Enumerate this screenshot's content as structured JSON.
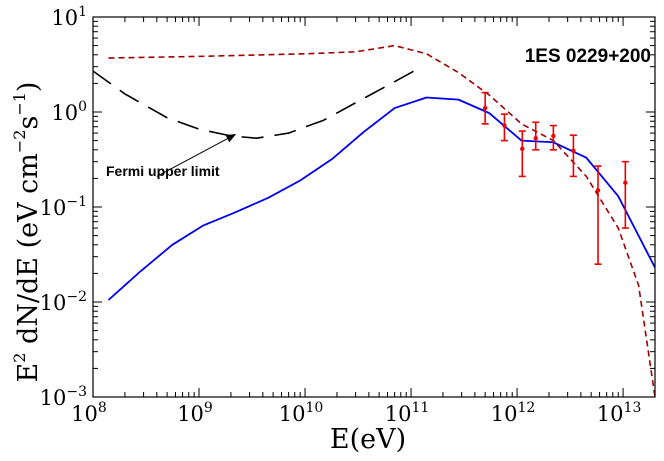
{
  "chart_data": {
    "type": "line",
    "title": "",
    "xscale": "log",
    "yscale": "log",
    "xlim": [
      100000000.0,
      20000000000000.0
    ],
    "ylim": [
      0.001,
      10
    ],
    "grid": false,
    "xlabel": "E(eV)",
    "ylabel": {
      "part1": "E",
      "sup1": "2",
      "part2": " dN/dE (eV cm",
      "sup2": "−2",
      "part3": "s",
      "sup3": "−1",
      "part4": ")"
    },
    "x_ticks": [
      {
        "base": "10",
        "exp": "8",
        "value": 100000000.0
      },
      {
        "base": "10",
        "exp": "9",
        "value": 1000000000.0
      },
      {
        "base": "10",
        "exp": "10",
        "value": 10000000000.0
      },
      {
        "base": "10",
        "exp": "11",
        "value": 100000000000.0
      },
      {
        "base": "10",
        "exp": "12",
        "value": 1000000000000.0
      },
      {
        "base": "10",
        "exp": "13",
        "value": 10000000000000.0
      }
    ],
    "y_ticks": [
      {
        "base": "10",
        "exp": "−3",
        "value": 0.001
      },
      {
        "base": "10",
        "exp": "−2",
        "value": 0.01
      },
      {
        "base": "10",
        "exp": "−1",
        "value": 0.1
      },
      {
        "base": "10",
        "exp": "0",
        "value": 1
      },
      {
        "base": "10",
        "exp": "1",
        "value": 10
      }
    ],
    "series": [
      {
        "key": "model_solid",
        "color": "#0000ee",
        "style": "solid",
        "points": [
          [
            140000000.0,
            0.0105
          ],
          [
            280000000.0,
            0.021
          ],
          [
            560000000.0,
            0.04
          ],
          [
            1100000000.0,
            0.064
          ],
          [
            2200000000.0,
            0.088
          ],
          [
            4500000000.0,
            0.125
          ],
          [
            9000000000.0,
            0.19
          ],
          [
            18000000000.0,
            0.32
          ],
          [
            36000000000.0,
            0.62
          ],
          [
            70000000000.0,
            1.1
          ],
          [
            140000000000.0,
            1.42
          ],
          [
            280000000000.0,
            1.35
          ],
          [
            550000000000.0,
            0.97
          ],
          [
            1100000000000.0,
            0.5
          ],
          [
            2200000000000.0,
            0.48
          ],
          [
            4500000000000.0,
            0.33
          ],
          [
            9000000000000.0,
            0.13
          ],
          [
            20000000000000.0,
            0.023
          ]
        ]
      },
      {
        "key": "model_dashed_red",
        "color": "#a00000",
        "style": "short-dash",
        "points": [
          [
            140000000.0,
            3.7
          ],
          [
            1000000000.0,
            3.85
          ],
          [
            10000000000.0,
            4.1
          ],
          [
            30000000000.0,
            4.3
          ],
          [
            70000000000.0,
            5.0
          ],
          [
            140000000000.0,
            4.1
          ],
          [
            280000000000.0,
            2.6
          ],
          [
            550000000000.0,
            1.5
          ],
          [
            1100000000000.0,
            0.75
          ],
          [
            2200000000000.0,
            0.5
          ],
          [
            4500000000000.0,
            0.21
          ],
          [
            9000000000000.0,
            0.06
          ],
          [
            14000000000000.0,
            0.015
          ],
          [
            20000000000000.0,
            0.001
          ]
        ]
      },
      {
        "key": "fermi_upper_limit",
        "color": "#000000",
        "style": "long-dash",
        "points": [
          [
            100000000.0,
            2.7
          ],
          [
            200000000.0,
            1.55
          ],
          [
            500000000.0,
            0.87
          ],
          [
            1000000000.0,
            0.66
          ],
          [
            2000000000.0,
            0.56
          ],
          [
            3500000000.0,
            0.53
          ],
          [
            7000000000.0,
            0.6
          ],
          [
            15000000000.0,
            0.82
          ],
          [
            30000000000.0,
            1.25
          ],
          [
            60000000000.0,
            1.9
          ],
          [
            120000000000.0,
            2.9
          ]
        ]
      }
    ],
    "data_points": {
      "color": "#ee0000",
      "points": [
        {
          "x": 500000000000.0,
          "y": 1.1,
          "ylo": 0.75,
          "yhi": 1.6
        },
        {
          "x": 760000000000.0,
          "y": 0.72,
          "ylo": 0.5,
          "yhi": 0.95
        },
        {
          "x": 1120000000000.0,
          "y": 0.41,
          "ylo": 0.21,
          "yhi": 0.63
        },
        {
          "x": 1500000000000.0,
          "y": 0.53,
          "ylo": 0.4,
          "yhi": 0.78
        },
        {
          "x": 2200000000000.0,
          "y": 0.56,
          "ylo": 0.4,
          "yhi": 0.72
        },
        {
          "x": 3400000000000.0,
          "y": 0.39,
          "ylo": 0.21,
          "yhi": 0.57
        },
        {
          "x": 5800000000000.0,
          "y": 0.15,
          "ylo": 0.025,
          "yhi": 0.27
        },
        {
          "x": 10500000000000.0,
          "y": 0.18,
          "ylo": 0.06,
          "yhi": 0.3
        }
      ]
    },
    "annotations": {
      "source_label": "1ES 0229+200",
      "fermi_label": "Fermi upper limit",
      "fermi_arrow_target": {
        "x": 2200000000.0,
        "y": 0.58
      },
      "fermi_arrow_tail": {
        "x": 400000000.0,
        "y": 0.21
      }
    }
  }
}
